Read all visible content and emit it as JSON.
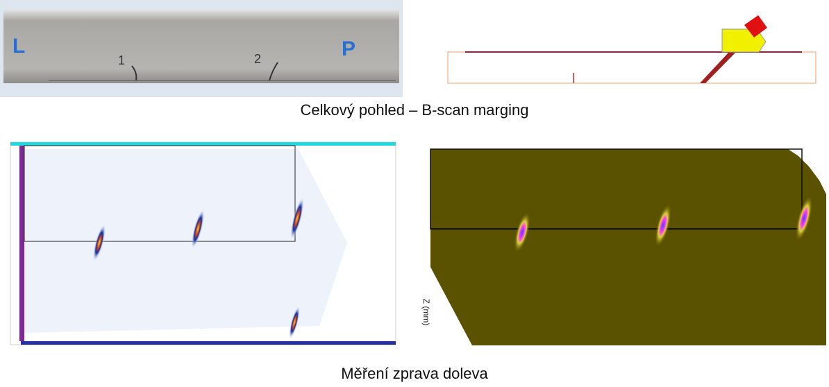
{
  "photo": {
    "labels": [
      "L",
      "1",
      "2",
      "P"
    ]
  },
  "captions": [
    "Celkový pohled – B-scan marging",
    "Měření zprava doleva"
  ],
  "scan": {
    "axis_label": "Z (mm)"
  }
}
